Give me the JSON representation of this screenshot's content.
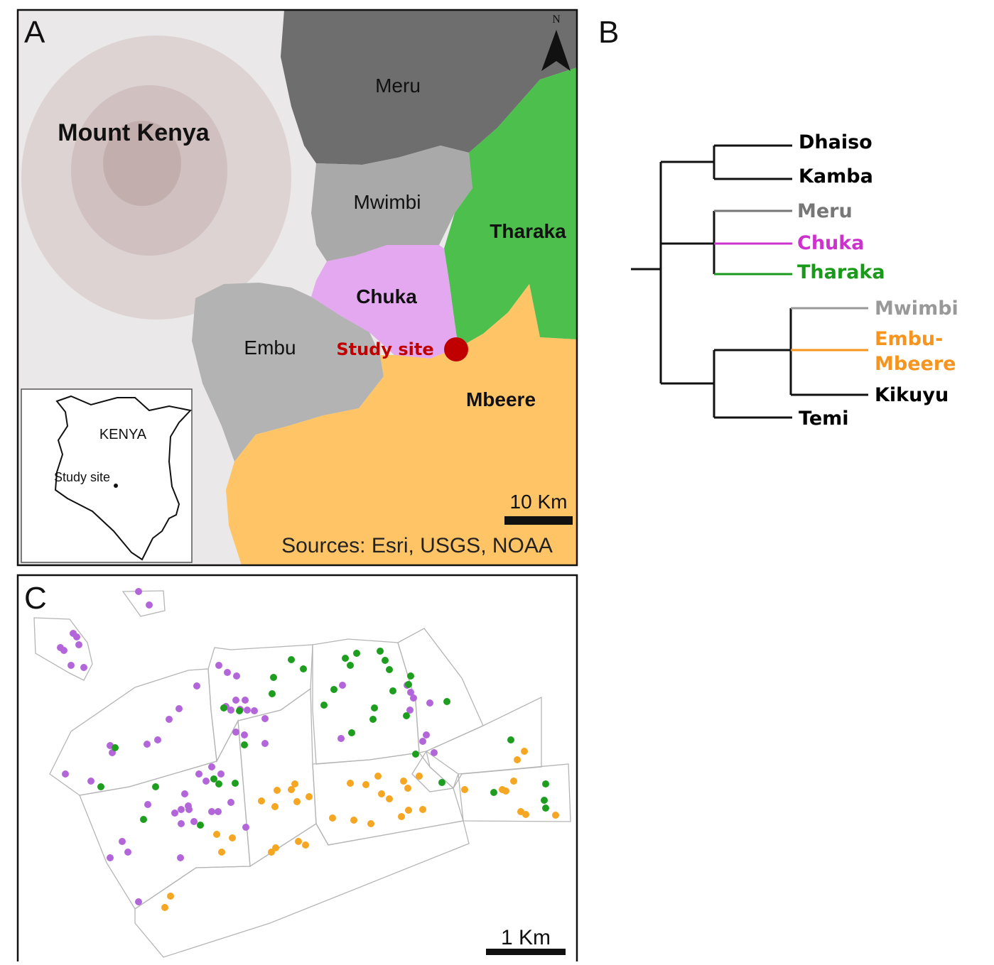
{
  "panels": {
    "a": {
      "letter": "A",
      "north_label": "N",
      "mountain_label": "Mount Kenya",
      "regions": {
        "meru": "Meru",
        "mwimbi": "Mwimbi",
        "tharaka": "Tharaka",
        "chuka": "Chuka",
        "embu": "Embu",
        "mbeere": "Mbeere"
      },
      "study_site_label": "Study site",
      "inset": {
        "country_label": "KENYA",
        "site_label": "Study site"
      },
      "scale_label": "10 Km",
      "sources": "Sources: Esri, USGS, NOAA",
      "colors": {
        "meru": "#6e6e6e",
        "mwimbi": "#a9a9a9",
        "embu": "#b3b3b3",
        "tharaka": "#4cbf4c",
        "chuka": "#e3a8ef",
        "mbeere": "#ffc465",
        "study_site": "#c00000"
      }
    },
    "b": {
      "letter": "B",
      "leaves": [
        {
          "name": "Dhaiso",
          "color": "#000000"
        },
        {
          "name": "Kamba",
          "color": "#000000"
        },
        {
          "name": "Meru",
          "color": "#777777"
        },
        {
          "name": "Chuka",
          "color": "#cc33cc"
        },
        {
          "name": "Tharaka",
          "color": "#1a9a1a"
        },
        {
          "name": "Mwimbi",
          "color": "#999999"
        },
        {
          "name": "Embu-",
          "color": "#f7941d"
        },
        {
          "name": "Mbeere",
          "color": "#f7941d"
        },
        {
          "name": "Kikuyu",
          "color": "#000000"
        },
        {
          "name": "Temi",
          "color": "#000000"
        }
      ]
    },
    "c": {
      "letter": "C",
      "scale_label": "1 Km",
      "point_colors": {
        "chuka": "#b366d9",
        "tharaka": "#1e9e1e",
        "mbeere": "#f5a623"
      }
    }
  }
}
